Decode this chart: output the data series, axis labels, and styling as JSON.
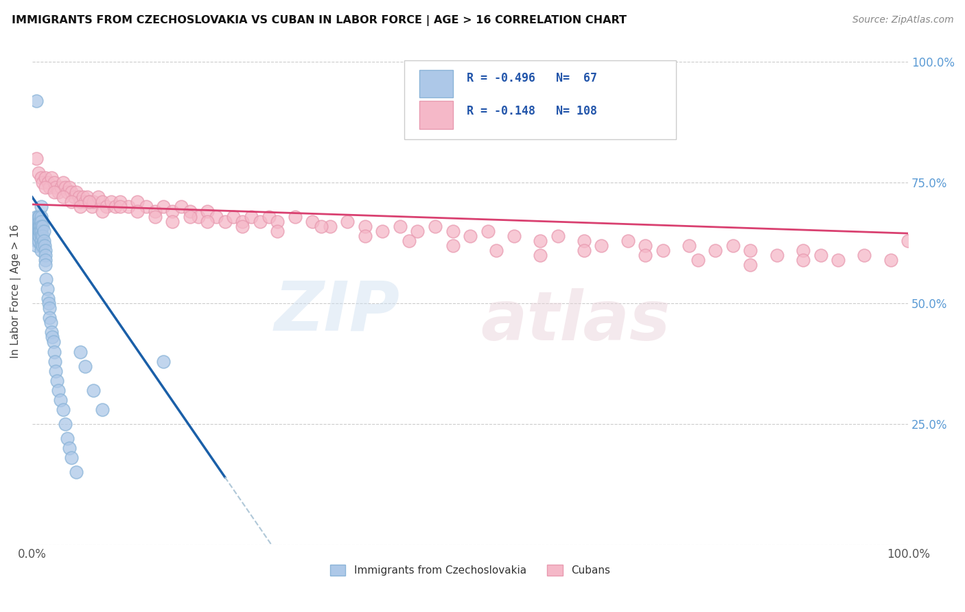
{
  "title": "IMMIGRANTS FROM CZECHOSLOVAKIA VS CUBAN IN LABOR FORCE | AGE > 16 CORRELATION CHART",
  "source": "Source: ZipAtlas.com",
  "ylabel": "In Labor Force | Age > 16",
  "yticks": [
    0.0,
    0.25,
    0.5,
    0.75,
    1.0
  ],
  "ytick_labels": [
    "",
    "25.0%",
    "50.0%",
    "75.0%",
    "100.0%"
  ],
  "xlim": [
    0.0,
    1.0
  ],
  "ylim": [
    0.0,
    1.05
  ],
  "legend_r1": "R = -0.496",
  "legend_n1": "N=  67",
  "legend_r2": "R = -0.148",
  "legend_n2": "N= 108",
  "blue_color": "#adc8e8",
  "pink_color": "#f5b8c8",
  "blue_edge": "#8ab4d8",
  "pink_edge": "#e89ab0",
  "trend_blue": "#1a5fa8",
  "trend_pink": "#d94070",
  "dashed_color": "#b0c8d8",
  "background": "#ffffff",
  "blue_scatter_x": [
    0.005,
    0.005,
    0.005,
    0.005,
    0.005,
    0.005,
    0.005,
    0.005,
    0.007,
    0.007,
    0.007,
    0.007,
    0.007,
    0.007,
    0.008,
    0.008,
    0.008,
    0.008,
    0.009,
    0.009,
    0.009,
    0.01,
    0.01,
    0.01,
    0.01,
    0.01,
    0.01,
    0.01,
    0.01,
    0.01,
    0.012,
    0.012,
    0.012,
    0.013,
    0.013,
    0.014,
    0.015,
    0.015,
    0.015,
    0.015,
    0.016,
    0.017,
    0.018,
    0.019,
    0.02,
    0.02,
    0.021,
    0.022,
    0.023,
    0.024,
    0.025,
    0.026,
    0.027,
    0.028,
    0.03,
    0.032,
    0.035,
    0.038,
    0.04,
    0.042,
    0.045,
    0.05,
    0.055,
    0.06,
    0.07,
    0.08,
    0.15
  ],
  "blue_scatter_y": [
    0.92,
    0.68,
    0.67,
    0.66,
    0.65,
    0.64,
    0.63,
    0.62,
    0.68,
    0.67,
    0.66,
    0.65,
    0.64,
    0.63,
    0.68,
    0.66,
    0.65,
    0.64,
    0.67,
    0.66,
    0.65,
    0.7,
    0.68,
    0.67,
    0.66,
    0.65,
    0.64,
    0.63,
    0.62,
    0.61,
    0.66,
    0.64,
    0.62,
    0.65,
    0.63,
    0.62,
    0.61,
    0.6,
    0.59,
    0.58,
    0.55,
    0.53,
    0.51,
    0.5,
    0.49,
    0.47,
    0.46,
    0.44,
    0.43,
    0.42,
    0.4,
    0.38,
    0.36,
    0.34,
    0.32,
    0.3,
    0.28,
    0.25,
    0.22,
    0.2,
    0.18,
    0.15,
    0.4,
    0.37,
    0.32,
    0.28,
    0.38
  ],
  "pink_scatter_x": [
    0.005,
    0.007,
    0.01,
    0.012,
    0.015,
    0.018,
    0.02,
    0.022,
    0.025,
    0.027,
    0.03,
    0.033,
    0.035,
    0.038,
    0.04,
    0.042,
    0.045,
    0.048,
    0.05,
    0.053,
    0.055,
    0.058,
    0.06,
    0.063,
    0.065,
    0.068,
    0.07,
    0.075,
    0.08,
    0.085,
    0.09,
    0.095,
    0.1,
    0.11,
    0.12,
    0.13,
    0.14,
    0.15,
    0.16,
    0.17,
    0.18,
    0.19,
    0.2,
    0.21,
    0.22,
    0.23,
    0.24,
    0.25,
    0.26,
    0.27,
    0.28,
    0.3,
    0.32,
    0.34,
    0.36,
    0.38,
    0.4,
    0.42,
    0.44,
    0.46,
    0.48,
    0.5,
    0.52,
    0.55,
    0.58,
    0.6,
    0.63,
    0.65,
    0.68,
    0.7,
    0.72,
    0.75,
    0.78,
    0.8,
    0.82,
    0.85,
    0.88,
    0.9,
    0.92,
    0.95,
    0.98,
    1.0,
    0.015,
    0.025,
    0.035,
    0.045,
    0.055,
    0.065,
    0.08,
    0.1,
    0.12,
    0.14,
    0.16,
    0.18,
    0.2,
    0.24,
    0.28,
    0.33,
    0.38,
    0.43,
    0.48,
    0.53,
    0.58,
    0.63,
    0.7,
    0.76,
    0.82,
    0.88
  ],
  "pink_scatter_y": [
    0.8,
    0.77,
    0.76,
    0.75,
    0.76,
    0.75,
    0.74,
    0.76,
    0.75,
    0.74,
    0.73,
    0.74,
    0.75,
    0.74,
    0.73,
    0.74,
    0.73,
    0.72,
    0.73,
    0.72,
    0.71,
    0.72,
    0.71,
    0.72,
    0.71,
    0.7,
    0.71,
    0.72,
    0.71,
    0.7,
    0.71,
    0.7,
    0.71,
    0.7,
    0.71,
    0.7,
    0.69,
    0.7,
    0.69,
    0.7,
    0.69,
    0.68,
    0.69,
    0.68,
    0.67,
    0.68,
    0.67,
    0.68,
    0.67,
    0.68,
    0.67,
    0.68,
    0.67,
    0.66,
    0.67,
    0.66,
    0.65,
    0.66,
    0.65,
    0.66,
    0.65,
    0.64,
    0.65,
    0.64,
    0.63,
    0.64,
    0.63,
    0.62,
    0.63,
    0.62,
    0.61,
    0.62,
    0.61,
    0.62,
    0.61,
    0.6,
    0.61,
    0.6,
    0.59,
    0.6,
    0.59,
    0.63,
    0.74,
    0.73,
    0.72,
    0.71,
    0.7,
    0.71,
    0.69,
    0.7,
    0.69,
    0.68,
    0.67,
    0.68,
    0.67,
    0.66,
    0.65,
    0.66,
    0.64,
    0.63,
    0.62,
    0.61,
    0.6,
    0.61,
    0.6,
    0.59,
    0.58,
    0.59
  ]
}
